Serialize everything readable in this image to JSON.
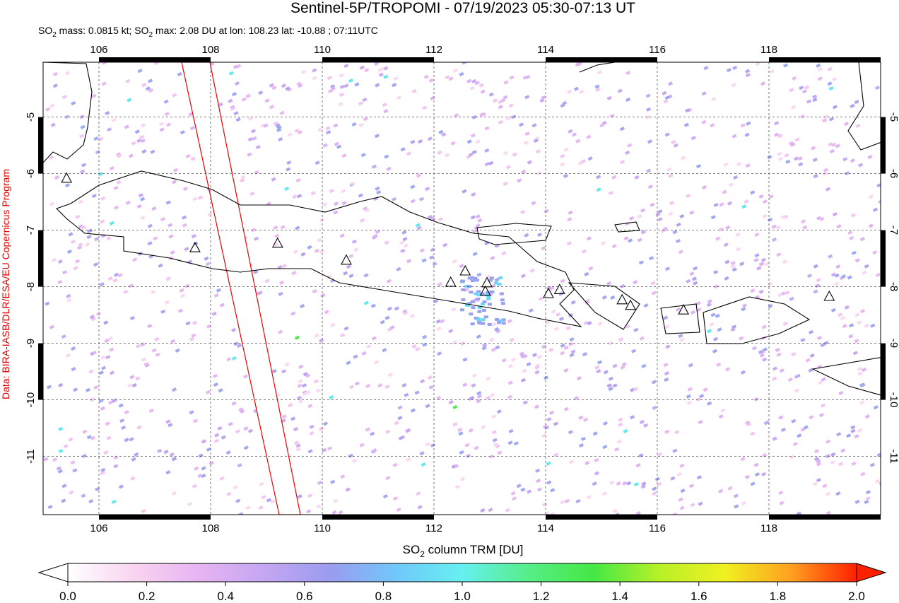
{
  "title": "Sentinel-5P/TROPOMI - 07/19/2023 05:30-07:13 UT",
  "subtitle_parts": [
    "SO",
    "2",
    " mass: 0.0815 kt; SO",
    "2",
    " max: 2.08 DU at lon: 108.23 lat: -10.88 ; 07:11UTC"
  ],
  "credit": "Data: BIRA-IASB/DLR/ESA/EU Copernicus Program",
  "map": {
    "xlim": [
      105,
      120
    ],
    "ylim": [
      -12.03,
      -4.03
    ],
    "xticks": [
      106,
      108,
      110,
      112,
      114,
      116,
      118
    ],
    "yticks": [
      -5,
      -6,
      -7,
      -8,
      -9,
      -10,
      -11
    ],
    "grid": true,
    "volcanoes": {
      "lon": [
        105.42,
        107.72,
        109.2,
        110.43,
        112.3,
        112.56,
        112.95,
        112.92,
        114.05,
        114.25,
        115.37,
        115.52,
        116.47,
        119.08
      ],
      "lat": [
        -6.09,
        -7.32,
        -7.24,
        -7.54,
        -7.93,
        -7.73,
        -7.94,
        -8.09,
        -8.13,
        -8.06,
        -8.24,
        -8.34,
        -8.42,
        -8.18
      ]
    }
  },
  "colorbar": {
    "label_parts": [
      "SO",
      "2",
      " column TRM [DU]"
    ],
    "lim": [
      0,
      2
    ],
    "ticks": [
      {
        "value": 0,
        "label": "0.0"
      },
      0.2,
      0.4,
      0.6,
      0.8,
      {
        "value": 1,
        "label": "1.0"
      },
      1.2,
      1.4,
      1.6,
      1.8,
      {
        "value": 2,
        "label": "2.0"
      }
    ],
    "colors": [
      "#ffffff",
      "#f9d4f0",
      "#e6b4f2",
      "#c4a6f2",
      "#9a9cf0",
      "#70c8fa",
      "#66f0f0",
      "#55ee88",
      "#44e844",
      "#b8f028",
      "#f0f020",
      "#ffa020",
      "#ff2000"
    ]
  }
}
